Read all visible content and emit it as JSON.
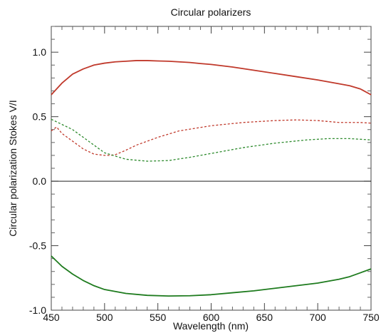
{
  "chart_data": {
    "type": "line",
    "title": "Circular polarizers",
    "xlabel": "Wavelength (nm)",
    "ylabel": "Circular polarization Stokes V/I",
    "xlim": [
      450,
      750
    ],
    "ylim": [
      -1.0,
      1.2
    ],
    "x_ticks": [
      450,
      500,
      550,
      600,
      650,
      700,
      750
    ],
    "y_ticks": [
      -1.0,
      -0.5,
      0.0,
      0.5,
      1.0
    ],
    "y_tick_labels": [
      "-1.0",
      "-0.5",
      "0.0",
      "0.5",
      "1.0"
    ],
    "zero_line": true,
    "grid": false,
    "legend": "none",
    "series": [
      {
        "color": "#c0392b",
        "style": "solid",
        "x": [
          450,
          460,
          470,
          480,
          490,
          500,
          510,
          520,
          530,
          540,
          550,
          560,
          570,
          580,
          590,
          600,
          620,
          640,
          660,
          680,
          700,
          720,
          730,
          740,
          750
        ],
        "y": [
          0.67,
          0.76,
          0.83,
          0.87,
          0.9,
          0.915,
          0.925,
          0.93,
          0.935,
          0.935,
          0.932,
          0.93,
          0.925,
          0.92,
          0.912,
          0.905,
          0.885,
          0.86,
          0.835,
          0.81,
          0.785,
          0.755,
          0.74,
          0.715,
          0.67
        ]
      },
      {
        "color": "#c0392b",
        "style": "dashed",
        "x": [
          450,
          455,
          460,
          470,
          480,
          490,
          500,
          505,
          510,
          520,
          530,
          550,
          570,
          600,
          630,
          660,
          680,
          700,
          720,
          740,
          750
        ],
        "y": [
          0.39,
          0.42,
          0.37,
          0.31,
          0.25,
          0.21,
          0.2,
          0.2,
          0.205,
          0.24,
          0.28,
          0.34,
          0.39,
          0.43,
          0.455,
          0.47,
          0.475,
          0.47,
          0.455,
          0.455,
          0.45
        ]
      },
      {
        "color": "#2e8b2e",
        "style": "dashed",
        "x": [
          450,
          460,
          470,
          480,
          490,
          500,
          520,
          540,
          560,
          580,
          600,
          630,
          660,
          690,
          710,
          730,
          740,
          750
        ],
        "y": [
          0.48,
          0.44,
          0.4,
          0.34,
          0.28,
          0.22,
          0.17,
          0.155,
          0.16,
          0.185,
          0.215,
          0.26,
          0.295,
          0.32,
          0.33,
          0.33,
          0.325,
          0.32
        ]
      },
      {
        "color": "#1e7b1e",
        "style": "solid",
        "x": [
          450,
          460,
          470,
          480,
          490,
          500,
          520,
          540,
          560,
          580,
          600,
          620,
          640,
          660,
          680,
          700,
          720,
          730,
          740,
          750
        ],
        "y": [
          -0.58,
          -0.66,
          -0.72,
          -0.77,
          -0.81,
          -0.84,
          -0.87,
          -0.885,
          -0.89,
          -0.888,
          -0.88,
          -0.865,
          -0.85,
          -0.83,
          -0.81,
          -0.79,
          -0.76,
          -0.74,
          -0.71,
          -0.68
        ]
      }
    ]
  }
}
